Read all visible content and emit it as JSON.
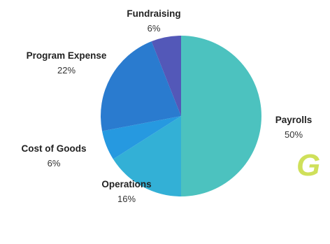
{
  "chart_data": {
    "type": "pie",
    "slices": [
      {
        "label": "Payrolls",
        "value": 50,
        "display": "50%",
        "color": "#4cc2bf"
      },
      {
        "label": "Operations",
        "value": 16,
        "display": "16%",
        "color": "#33b0d6"
      },
      {
        "label": "Cost of Goods",
        "value": 6,
        "display": "6%",
        "color": "#2699e0"
      },
      {
        "label": "Program Expense",
        "value": 22,
        "display": "22%",
        "color": "#2a7bcf"
      },
      {
        "label": "Fundraising",
        "value": 6,
        "display": "6%",
        "color": "#5358b8"
      }
    ],
    "legend": "none",
    "background_text": "G"
  }
}
